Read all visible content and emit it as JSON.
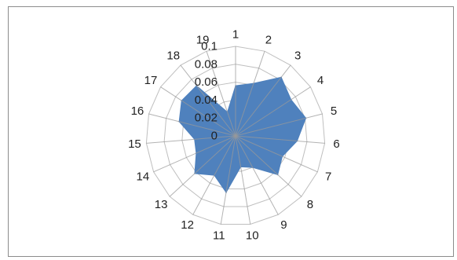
{
  "chart_data": {
    "type": "radar",
    "title": "",
    "categories": [
      "1",
      "2",
      "3",
      "4",
      "5",
      "6",
      "7",
      "8",
      "9",
      "10",
      "11",
      "12",
      "13",
      "14",
      "15",
      "16",
      "17",
      "18",
      "19"
    ],
    "series": [
      {
        "values": [
          0.056,
          0.062,
          0.083,
          0.074,
          0.081,
          0.069,
          0.057,
          0.064,
          0.04,
          0.035,
          0.064,
          0.05,
          0.062,
          0.048,
          0.046,
          0.065,
          0.072,
          0.071,
          0.028
        ]
      }
    ],
    "rlim": [
      0,
      0.1
    ],
    "tick_labels": [
      "0",
      "0.02",
      "0.04",
      "0.06",
      "0.08",
      "0.1"
    ],
    "grid": true,
    "legend": "none",
    "colors": {
      "fill": "#4f81bd",
      "grid": "#bfbfbf",
      "spoke": "#9a9a9a",
      "border": "#8c8c8c"
    }
  }
}
